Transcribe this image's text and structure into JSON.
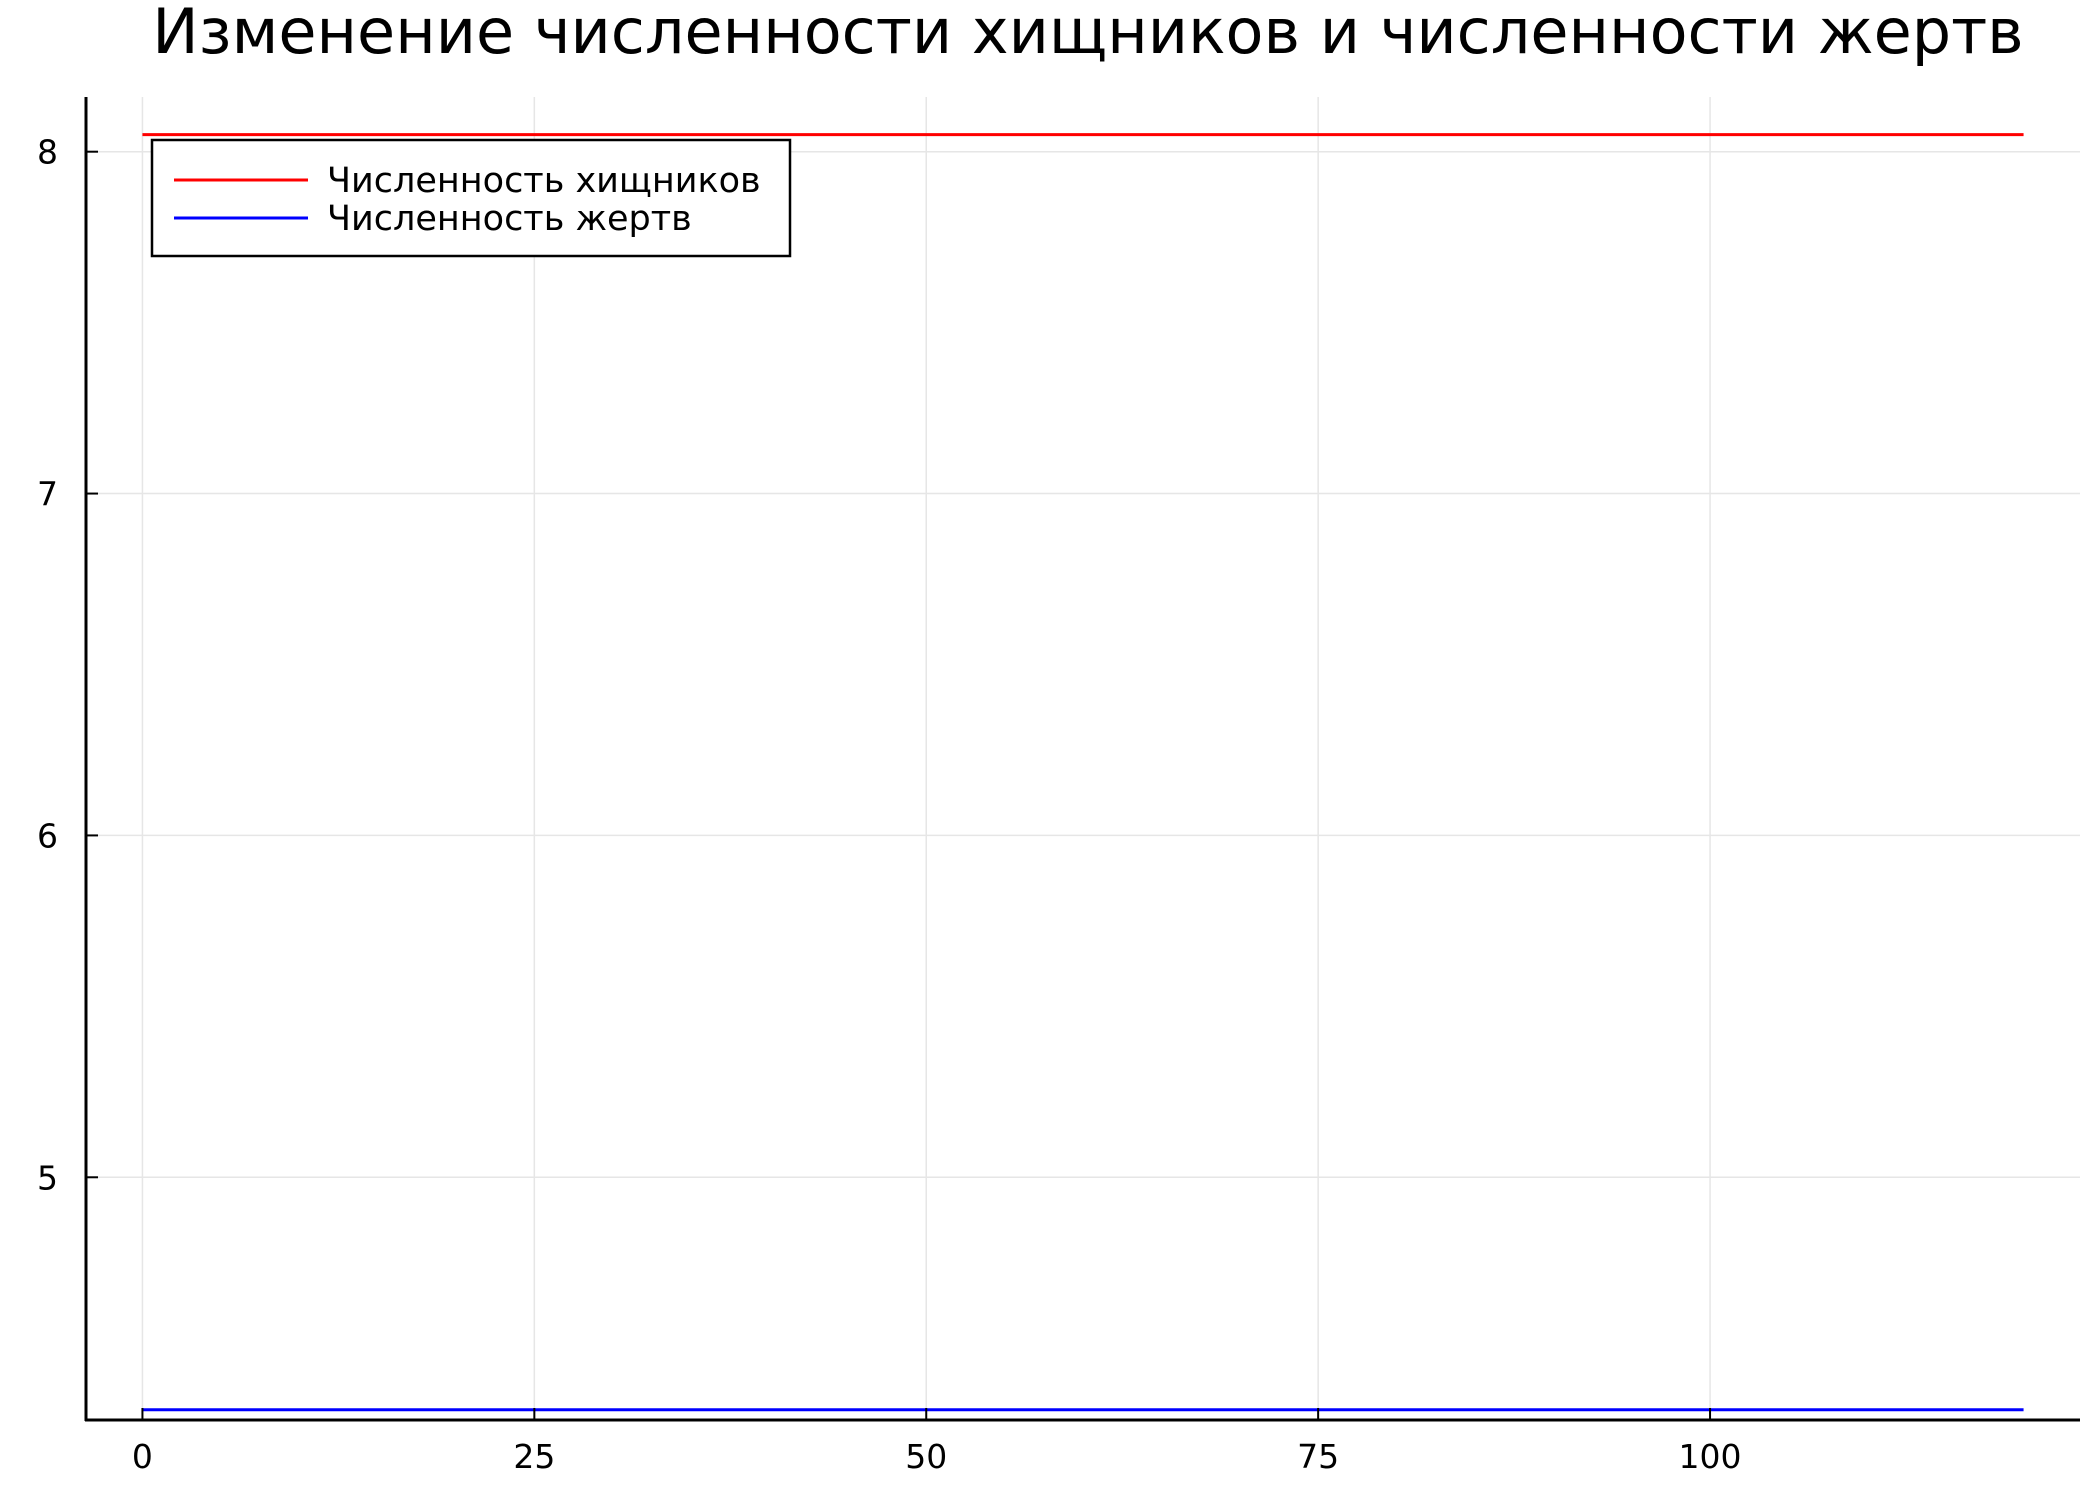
{
  "chart_data": {
    "type": "line",
    "title": "Изменение численности хищников и численности жертв",
    "xlabel": "",
    "ylabel": "",
    "x": [
      0,
      120
    ],
    "xlim": [
      -3.6,
      123.6
    ],
    "ylim": [
      4.29,
      8.16
    ],
    "xticks": [
      0,
      25,
      50,
      75,
      100
    ],
    "yticks": [
      5,
      6,
      7,
      8
    ],
    "grid": true,
    "legend_position": "top-left",
    "series": [
      {
        "name": "Численность хищников",
        "color": "#ff0000",
        "values": [
          8.05,
          8.05
        ]
      },
      {
        "name": "Численность жертв",
        "color": "#0000ff",
        "values": [
          4.32,
          4.32
        ]
      }
    ]
  }
}
